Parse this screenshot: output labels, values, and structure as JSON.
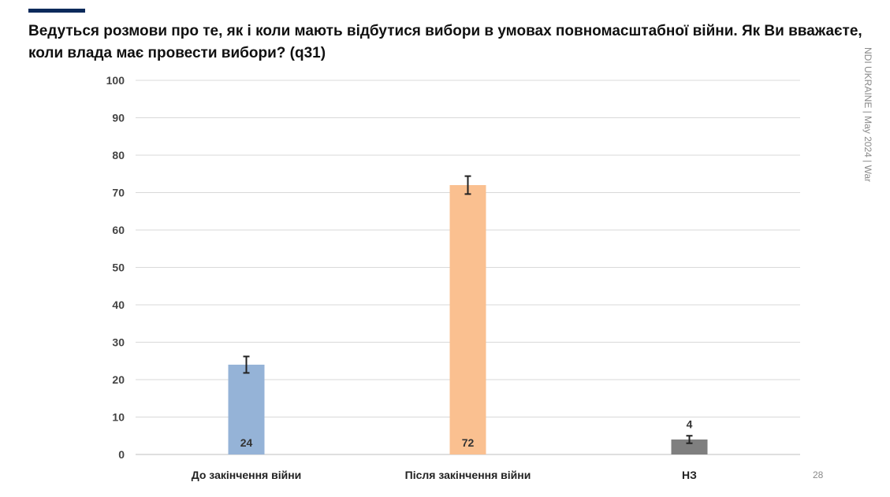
{
  "header": {
    "title": "Ведуться розмови про те, як і коли мають відбутися вибори в умовах повномасштабної війни. Як Ви вважаєте, коли влада має провести вибори? (q31)"
  },
  "side_label": "NDI UKRAINE | May 2024 | War",
  "page_number": "28",
  "colors": {
    "accent": "#0b2a5b",
    "bar1": "#95b3d7",
    "bar2": "#fac090",
    "bar3": "#7f7f7f"
  },
  "chart_data": {
    "type": "bar",
    "title": "Ведуться розмови про те, як і коли мають відбутися вибори в умовах повномасштабної війни. Як Ви вважаєте, коли влада має провести вибори? (q31)",
    "categories": [
      "До закінчення війни",
      "Після закінчення війни",
      "НЗ"
    ],
    "values": [
      24,
      72,
      4
    ],
    "data_labels": [
      "24",
      "72",
      "4"
    ],
    "error_bars": [
      [
        21.8,
        26.2
      ],
      [
        69.6,
        74.4
      ],
      [
        3,
        5
      ]
    ],
    "ylim": [
      0,
      100
    ],
    "yticks": [
      0,
      10,
      20,
      30,
      40,
      50,
      60,
      70,
      80,
      90,
      100
    ],
    "grid": true,
    "xlabel": "",
    "ylabel": ""
  }
}
